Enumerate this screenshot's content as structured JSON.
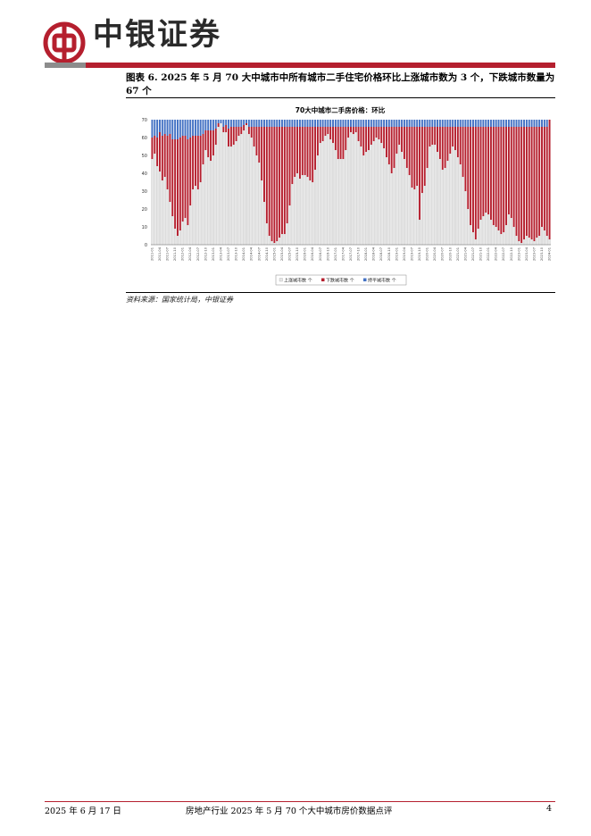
{
  "header": {
    "brand": "中银证券",
    "colors": {
      "accent": "#b51f2e",
      "gray": "#8c8c8c"
    }
  },
  "figure": {
    "title": "图表 6. 2025 年 5 月 70 大中城市中所有城市二手住宅价格环比上涨城市数为 3 个，下跌城市数量为 67 个",
    "source": "资料来源：国家统计局，中银证券"
  },
  "chart_data": {
    "type": "bar",
    "stacked": true,
    "title": "70大中城市二手房价格：环比",
    "ylim": [
      0,
      70
    ],
    "yticks": [
      0,
      10,
      20,
      30,
      40,
      50,
      60,
      70
    ],
    "x_start": "2011-01",
    "x_end": "2025-05",
    "series": [
      {
        "name": "上涨城市数 个",
        "color": "#e6e6e6",
        "values": [
          48,
          51,
          44,
          41,
          36,
          38,
          31,
          24,
          16,
          9,
          5,
          8,
          13,
          15,
          11,
          22,
          31,
          33,
          31,
          35,
          45,
          53,
          49,
          47,
          50,
          56,
          66,
          68,
          63,
          63,
          55,
          55,
          56,
          58,
          61,
          62,
          64,
          67,
          62,
          60,
          55,
          50,
          46,
          36,
          24,
          12,
          5,
          2,
          1,
          2,
          4,
          6,
          6,
          12,
          22,
          34,
          38,
          40,
          37,
          39,
          39,
          38,
          36,
          35,
          42,
          50,
          57,
          58,
          61,
          62,
          59,
          57,
          53,
          48,
          48,
          48,
          53,
          60,
          63,
          62,
          63,
          58,
          55,
          50,
          52,
          53,
          56,
          58,
          60,
          59,
          57,
          54,
          49,
          45,
          40,
          43,
          51,
          56,
          52,
          48,
          43,
          39,
          32,
          31,
          33,
          14,
          29,
          33,
          43,
          55,
          56,
          56,
          52,
          48,
          42,
          43,
          47,
          51,
          55,
          53,
          49,
          45,
          38,
          30,
          20,
          11,
          7,
          3,
          9,
          14,
          16,
          18,
          17,
          14,
          11,
          10,
          8,
          6,
          7,
          11,
          17,
          15,
          10,
          5,
          2,
          1,
          3,
          5,
          4,
          3,
          2,
          4,
          5,
          10,
          8,
          5,
          3
        ]
      },
      {
        "name": "下跌城市数 个",
        "color": "#b51f2e",
        "values": [
          12,
          10,
          16,
          22,
          25,
          24,
          30,
          38,
          43,
          50,
          54,
          52,
          48,
          46,
          48,
          38,
          30,
          28,
          30,
          26,
          17,
          11,
          15,
          17,
          14,
          9,
          2,
          0,
          3,
          4,
          10,
          11,
          10,
          8,
          5,
          4,
          3,
          1,
          4,
          6,
          11,
          16,
          20,
          30,
          42,
          54,
          61,
          64,
          65,
          64,
          62,
          60,
          60,
          54,
          44,
          32,
          28,
          26,
          29,
          27,
          27,
          28,
          30,
          31,
          24,
          16,
          9,
          8,
          5,
          4,
          7,
          9,
          13,
          18,
          18,
          18,
          13,
          6,
          3,
          4,
          3,
          8,
          11,
          16,
          14,
          13,
          10,
          8,
          6,
          7,
          9,
          12,
          17,
          21,
          26,
          23,
          15,
          10,
          14,
          18,
          23,
          27,
          34,
          35,
          33,
          52,
          37,
          33,
          23,
          11,
          10,
          10,
          14,
          18,
          24,
          23,
          19,
          15,
          11,
          13,
          17,
          21,
          28,
          36,
          46,
          55,
          59,
          63,
          57,
          52,
          50,
          48,
          49,
          52,
          55,
          56,
          58,
          60,
          59,
          55,
          49,
          51,
          56,
          61,
          64,
          65,
          63,
          61,
          62,
          63,
          64,
          62,
          61,
          56,
          58,
          61,
          67
        ]
      },
      {
        "name": "持平城市数 个",
        "color": "#4472c4",
        "values": [
          10,
          9,
          10,
          7,
          9,
          8,
          9,
          8,
          11,
          11,
          11,
          10,
          9,
          9,
          11,
          10,
          9,
          9,
          9,
          9,
          8,
          6,
          6,
          6,
          6,
          5,
          2,
          2,
          4,
          3,
          5,
          4,
          4,
          4,
          4,
          4,
          3,
          2,
          4,
          4,
          4,
          4,
          4,
          4,
          4,
          4,
          4,
          4,
          4,
          4,
          4,
          4,
          4,
          4,
          4,
          4,
          4,
          4,
          4,
          4,
          4,
          4,
          4,
          4,
          4,
          4,
          4,
          4,
          4,
          4,
          4,
          4,
          4,
          4,
          4,
          4,
          4,
          4,
          4,
          4,
          4,
          4,
          4,
          4,
          4,
          4,
          4,
          4,
          4,
          4,
          4,
          4,
          4,
          4,
          4,
          4,
          4,
          4,
          4,
          4,
          4,
          4,
          4,
          4,
          4,
          4,
          4,
          4,
          4,
          4,
          4,
          4,
          4,
          4,
          4,
          4,
          4,
          4,
          4,
          4,
          4,
          4,
          4,
          4,
          4,
          4,
          4,
          4,
          4,
          4,
          4,
          4,
          4,
          4,
          4,
          4,
          4,
          4,
          4,
          4,
          4,
          4,
          4,
          4,
          4,
          4,
          4,
          4,
          4,
          4,
          4,
          4,
          4,
          4,
          4,
          4,
          0
        ]
      }
    ],
    "legend": [
      "上涨城市数 个",
      "下跌城市数 个",
      "持平城市数 个"
    ],
    "legend_position": "bottom"
  },
  "footer": {
    "date": "2025 年 6 月 17 日",
    "title": "房地产行业 2025 年 5 月 70 个大中城市房价数据点评",
    "page": "4"
  }
}
